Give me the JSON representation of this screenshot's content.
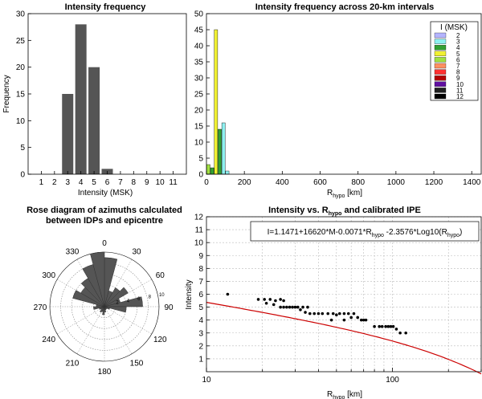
{
  "chart_data": [
    {
      "type": "bar",
      "title": "Intensity frequency",
      "xlabel": "Intensity (MSK)",
      "ylabel": "Frequency",
      "categories": [
        "1",
        "2",
        "3",
        "4",
        "5",
        "6",
        "7",
        "8",
        "9",
        "10",
        "11"
      ],
      "values": [
        0,
        0,
        15,
        28,
        20,
        1,
        0,
        0,
        0,
        0,
        0
      ],
      "ylim": [
        0,
        30
      ],
      "yticks": [
        "0",
        "5",
        "10",
        "15",
        "20",
        "25",
        "30"
      ],
      "color": "#555555"
    },
    {
      "type": "bar",
      "title": "Intensity frequency across 20-km intervals",
      "xlabel": "R",
      "xlabel_sub": "hypo",
      "xlabel_unit": " [km]",
      "ylabel": "",
      "xlim": [
        0,
        1450
      ],
      "ylim": [
        0,
        50
      ],
      "xticks": [
        "0",
        "200",
        "400",
        "600",
        "800",
        "1000",
        "1200",
        "1400"
      ],
      "yticks": [
        "0",
        "5",
        "10",
        "15",
        "20",
        "25",
        "30",
        "35",
        "40",
        "45",
        "50"
      ],
      "legend_title": "I (MSK)",
      "legend_position": "top-right",
      "legend": [
        {
          "label": "2",
          "color": "#b4b4ff"
        },
        {
          "label": "3",
          "color": "#8ef0f0"
        },
        {
          "label": "4",
          "color": "#32a032"
        },
        {
          "label": "5",
          "color": "#f0f032"
        },
        {
          "label": "6",
          "color": "#a0e040"
        },
        {
          "label": "7",
          "color": "#ff9060"
        },
        {
          "label": "8",
          "color": "#ff3030"
        },
        {
          "label": "9",
          "color": "#b40000"
        },
        {
          "label": "10",
          "color": "#6010a0"
        },
        {
          "label": "11",
          "color": "#202020"
        },
        {
          "label": "12",
          "color": "#000000"
        }
      ],
      "bars": [
        {
          "x": 10,
          "value": 3,
          "intensity": "6"
        },
        {
          "x": 30,
          "value": 2,
          "intensity": "4"
        },
        {
          "x": 50,
          "value": 45,
          "intensity": "5"
        },
        {
          "x": 70,
          "value": 14,
          "intensity": "4"
        },
        {
          "x": 90,
          "value": 16,
          "intensity": "3"
        },
        {
          "x": 110,
          "value": 1,
          "intensity": "3"
        }
      ]
    },
    {
      "type": "rose",
      "title_line1": "Rose diagram of azimuths calculated",
      "title_line2": "between  IDPs and epicentre",
      "angle_labels": [
        "0",
        "30",
        "60",
        "90",
        "120",
        "150",
        "180",
        "210",
        "240",
        "270",
        "300",
        "330"
      ],
      "radial_labels": [
        "2",
        "4",
        "6",
        "8",
        "10"
      ],
      "rmax": 10,
      "bin_width_deg": 15,
      "sectors": [
        {
          "angle": 0,
          "value": 9
        },
        {
          "angle": 15,
          "value": 3
        },
        {
          "angle": 30,
          "value": 4
        },
        {
          "angle": 45,
          "value": 5
        },
        {
          "angle": 60,
          "value": 3
        },
        {
          "angle": 75,
          "value": 7
        },
        {
          "angle": 90,
          "value": 4
        },
        {
          "angle": 105,
          "value": 1
        },
        {
          "angle": 120,
          "value": 0.6
        },
        {
          "angle": 135,
          "value": 0.5
        },
        {
          "angle": 150,
          "value": 0.6
        },
        {
          "angle": 165,
          "value": 1
        },
        {
          "angle": 180,
          "value": 1.5
        },
        {
          "angle": 195,
          "value": 1
        },
        {
          "angle": 210,
          "value": 1.2
        },
        {
          "angle": 225,
          "value": 0.8
        },
        {
          "angle": 240,
          "value": 1
        },
        {
          "angle": 255,
          "value": 2
        },
        {
          "angle": 270,
          "value": 1.5
        },
        {
          "angle": 285,
          "value": 6
        },
        {
          "angle": 300,
          "value": 5
        },
        {
          "angle": 315,
          "value": 6
        },
        {
          "angle": 330,
          "value": 8
        },
        {
          "angle": 345,
          "value": 10
        }
      ],
      "color": "#555555"
    },
    {
      "type": "scatter",
      "title": "Intensity vs. R",
      "title_sub": "hypo",
      "title_suffix": " and calibrated IPE",
      "xlabel": "R",
      "xlabel_sub": "hypo",
      "xlabel_unit": " [km]",
      "ylabel": "Intensity",
      "xscale": "log",
      "xlim": [
        10,
        300
      ],
      "ylim": [
        0,
        12
      ],
      "xticks": [
        "10",
        "100"
      ],
      "yticks": [
        "1",
        "2",
        "3",
        "4",
        "5",
        "6",
        "7",
        "8",
        "9",
        "10",
        "11",
        "12"
      ],
      "grid": true,
      "equation_parts": [
        {
          "t": "I=1.1471+16620*M-0.0071*R",
          "sub": false
        },
        {
          "t": "hypo",
          "sub": true
        },
        {
          "t": " -2.3576*Log10(R",
          "sub": false
        },
        {
          "t": "hypo",
          "sub": true
        },
        {
          "t": ")",
          "sub": false
        }
      ],
      "points": [
        [
          13,
          6
        ],
        [
          19,
          5.6
        ],
        [
          20.5,
          5.6
        ],
        [
          22,
          5.6
        ],
        [
          23.5,
          5.5
        ],
        [
          25,
          5.6
        ],
        [
          26,
          5.5
        ],
        [
          21,
          5.3
        ],
        [
          23,
          5.2
        ],
        [
          25,
          5
        ],
        [
          26,
          5
        ],
        [
          27,
          5
        ],
        [
          28,
          5
        ],
        [
          29,
          5
        ],
        [
          30,
          5
        ],
        [
          31,
          5
        ],
        [
          33,
          5
        ],
        [
          35,
          5
        ],
        [
          32,
          4.8
        ],
        [
          34,
          4.6
        ],
        [
          36,
          4.5
        ],
        [
          38,
          4.5
        ],
        [
          40,
          4.5
        ],
        [
          42,
          4.5
        ],
        [
          45,
          4.5
        ],
        [
          48,
          4.5
        ],
        [
          50,
          4.4
        ],
        [
          52,
          4.5
        ],
        [
          55,
          4.5
        ],
        [
          58,
          4.5
        ],
        [
          62,
          4.5
        ],
        [
          47,
          4
        ],
        [
          55,
          4
        ],
        [
          60,
          4.2
        ],
        [
          65,
          4.2
        ],
        [
          68,
          4
        ],
        [
          70,
          4
        ],
        [
          72,
          4
        ],
        [
          80,
          3.5
        ],
        [
          85,
          3.5
        ],
        [
          88,
          3.5
        ],
        [
          92,
          3.5
        ],
        [
          95,
          3.5
        ],
        [
          98,
          3.5
        ],
        [
          101,
          3.5
        ],
        [
          105,
          3.3
        ],
        [
          110,
          3
        ],
        [
          118,
          3
        ]
      ],
      "fit": {
        "a": 7.8,
        "b": -0.0071,
        "c": -2.3576
      },
      "point_color": "#000000",
      "curve_color": "#cc0000"
    }
  ]
}
